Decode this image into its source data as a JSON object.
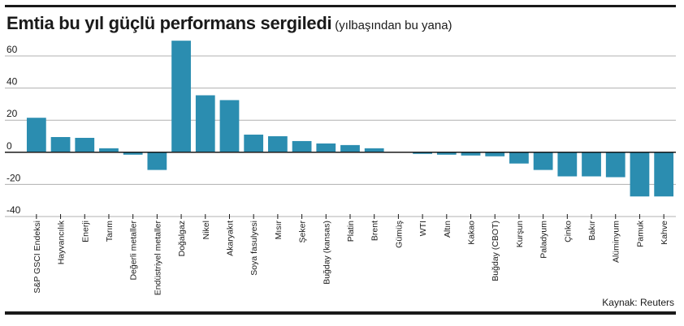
{
  "header": {
    "title": "Emtia bu yıl güçlü performans sergiledi",
    "subtitle": "(yılbaşından bu yana)"
  },
  "footer": {
    "source": "Kaynak: Reuters"
  },
  "colors": {
    "bar": "#2b8db0",
    "grid": "#b0b0b0",
    "axis": "#1a1a1a"
  },
  "chart_data": {
    "type": "bar",
    "title": "Emtia bu yıl güçlü performans sergiledi",
    "subtitle": "(yılbaşından bu yana)",
    "xlabel": "",
    "ylabel": "",
    "ylim": [
      -40,
      60
    ],
    "yticks": [
      60,
      40,
      20,
      0,
      -20,
      -40
    ],
    "grid": true,
    "categories": [
      "S&P GSCI Endeksi",
      "Hayvancılık",
      "Enerji",
      "Tarım",
      "Değerli metaller",
      "Endüstriyel metaller",
      "Doğalgaz",
      "Nikel",
      "Akaryakıt",
      "Soya fasulyesi",
      "Mısır",
      "Şeker",
      "Buğday (kansas)",
      "Platin",
      "Brent",
      "Gümüş",
      "WTI",
      "Altın",
      "Kakao",
      "Buğday (CBOT)",
      "Kurşun",
      "Paladyum",
      "Çinko",
      "Bakır",
      "Alüminyum",
      "Pamuk",
      "Kahve"
    ],
    "values": [
      21.5,
      9.5,
      9,
      2.5,
      -1.5,
      -11,
      69.5,
      35.5,
      32.5,
      11,
      10,
      7,
      5.5,
      4.5,
      2.5,
      0,
      -1,
      -1.5,
      -2,
      -2.5,
      -7,
      -11,
      -15,
      -15,
      -15.5,
      -27.5,
      -27.5
    ]
  }
}
